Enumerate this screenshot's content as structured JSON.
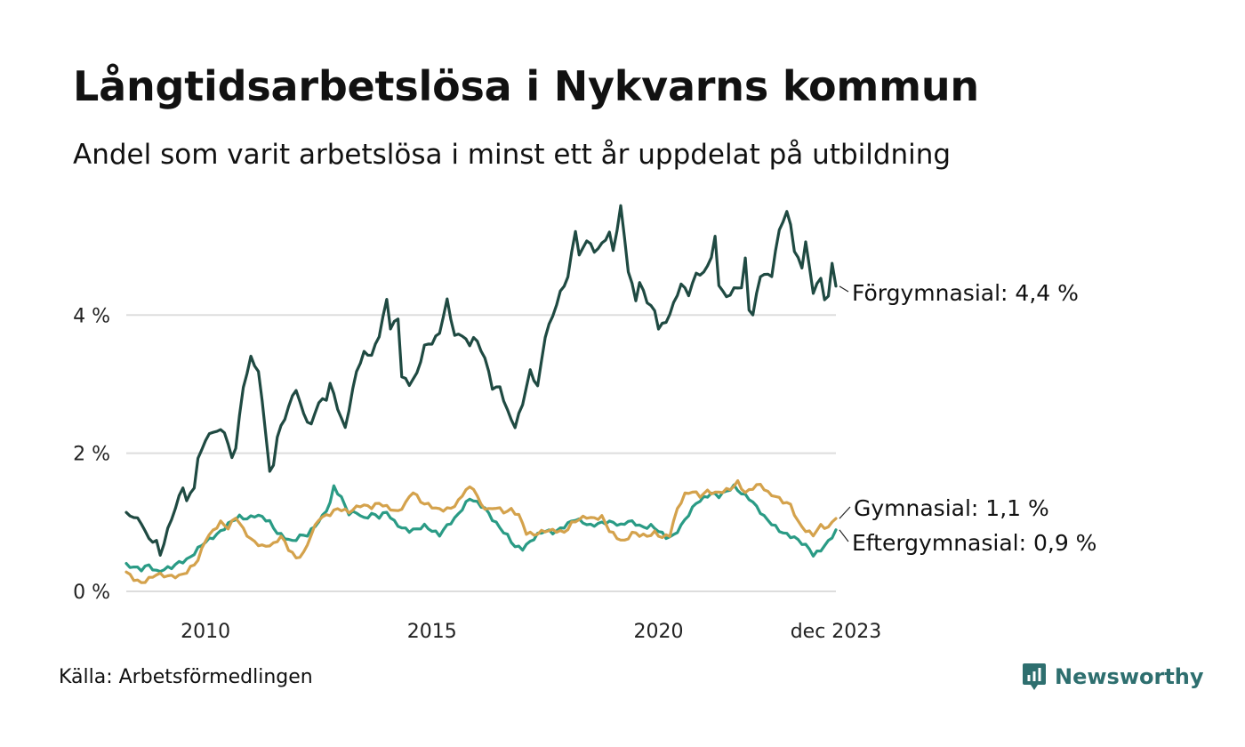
{
  "title": "Långtidsarbetslösa i Nykvarns kommun",
  "subtitle": "Andel som varit arbetslösa i minst ett år uppdelat på utbildning",
  "source": "Källa: Arbetsförmedlingen",
  "brand": {
    "name": "Newsworthy",
    "icon": "newsworthy-logo-icon",
    "color": "#2e6f6f"
  },
  "chart_data": {
    "type": "line",
    "title": "Långtidsarbetslösa i Nykvarns kommun",
    "xlabel": "",
    "ylabel": "",
    "x_start": 2008.25,
    "x_step": 0.08333,
    "xlim": [
      2008.25,
      2023.917
    ],
    "ylim": [
      0,
      5.6
    ],
    "grid": true,
    "y_ticks": [
      0,
      2,
      4
    ],
    "y_tick_labels": [
      "0 %",
      "2 %",
      "4 %"
    ],
    "x_ticks": [
      2010,
      2015,
      2020,
      2023.917
    ],
    "x_tick_labels": [
      "2010",
      "2015",
      "2020",
      "dec 2023"
    ],
    "series": [
      {
        "name": "Förgymnasial",
        "label": "Förgymnasial: 4,4 %",
        "color": "#1f4a42",
        "anchors": [
          [
            2008.25,
            1.12
          ],
          [
            2008.42,
            1.08
          ],
          [
            2008.58,
            1.0
          ],
          [
            2008.75,
            0.75
          ],
          [
            2008.92,
            0.72
          ],
          [
            2009.0,
            0.52
          ],
          [
            2009.17,
            0.9
          ],
          [
            2009.33,
            1.2
          ],
          [
            2009.5,
            1.52
          ],
          [
            2009.58,
            1.3
          ],
          [
            2009.75,
            1.52
          ],
          [
            2009.83,
            1.9
          ],
          [
            2010.0,
            2.2
          ],
          [
            2010.17,
            2.32
          ],
          [
            2010.42,
            2.32
          ],
          [
            2010.58,
            1.92
          ],
          [
            2010.67,
            2.1
          ],
          [
            2010.83,
            2.95
          ],
          [
            2011.0,
            3.38
          ],
          [
            2011.17,
            3.18
          ],
          [
            2011.33,
            2.3
          ],
          [
            2011.42,
            1.7
          ],
          [
            2011.5,
            1.82
          ],
          [
            2011.58,
            2.25
          ],
          [
            2011.75,
            2.5
          ],
          [
            2011.83,
            2.68
          ],
          [
            2012.0,
            2.93
          ],
          [
            2012.17,
            2.55
          ],
          [
            2012.33,
            2.4
          ],
          [
            2012.5,
            2.75
          ],
          [
            2012.67,
            2.78
          ],
          [
            2012.75,
            3.02
          ],
          [
            2012.92,
            2.65
          ],
          [
            2013.08,
            2.35
          ],
          [
            2013.17,
            2.65
          ],
          [
            2013.33,
            3.18
          ],
          [
            2013.5,
            3.45
          ],
          [
            2013.67,
            3.42
          ],
          [
            2013.83,
            3.7
          ],
          [
            2014.0,
            4.22
          ],
          [
            2014.08,
            3.82
          ],
          [
            2014.25,
            3.95
          ],
          [
            2014.33,
            3.12
          ],
          [
            2014.5,
            3.0
          ],
          [
            2014.67,
            3.15
          ],
          [
            2014.83,
            3.55
          ],
          [
            2015.0,
            3.6
          ],
          [
            2015.17,
            3.75
          ],
          [
            2015.33,
            4.22
          ],
          [
            2015.5,
            3.7
          ],
          [
            2015.67,
            3.72
          ],
          [
            2015.83,
            3.55
          ],
          [
            2015.92,
            3.7
          ],
          [
            2016.17,
            3.38
          ],
          [
            2016.33,
            2.95
          ],
          [
            2016.5,
            2.95
          ],
          [
            2016.67,
            2.6
          ],
          [
            2016.83,
            2.38
          ],
          [
            2017.0,
            2.72
          ],
          [
            2017.17,
            3.2
          ],
          [
            2017.33,
            2.95
          ],
          [
            2017.5,
            3.7
          ],
          [
            2017.67,
            4.0
          ],
          [
            2017.83,
            4.32
          ],
          [
            2018.0,
            4.55
          ],
          [
            2018.17,
            5.25
          ],
          [
            2018.25,
            4.85
          ],
          [
            2018.42,
            5.1
          ],
          [
            2018.58,
            4.92
          ],
          [
            2018.75,
            5.02
          ],
          [
            2018.92,
            5.2
          ],
          [
            2019.0,
            4.92
          ],
          [
            2019.17,
            5.58
          ],
          [
            2019.33,
            4.65
          ],
          [
            2019.5,
            4.22
          ],
          [
            2019.58,
            4.48
          ],
          [
            2019.75,
            4.2
          ],
          [
            2019.92,
            4.05
          ],
          [
            2020.0,
            3.82
          ],
          [
            2020.17,
            3.9
          ],
          [
            2020.33,
            4.15
          ],
          [
            2020.5,
            4.45
          ],
          [
            2020.67,
            4.3
          ],
          [
            2020.83,
            4.6
          ],
          [
            2021.0,
            4.6
          ],
          [
            2021.17,
            4.85
          ],
          [
            2021.25,
            5.12
          ],
          [
            2021.33,
            4.45
          ],
          [
            2021.5,
            4.25
          ],
          [
            2021.67,
            4.38
          ],
          [
            2021.83,
            4.4
          ],
          [
            2021.92,
            4.82
          ],
          [
            2022.0,
            4.08
          ],
          [
            2022.08,
            4.0
          ],
          [
            2022.25,
            4.58
          ],
          [
            2022.5,
            4.58
          ],
          [
            2022.67,
            5.25
          ],
          [
            2022.83,
            5.48
          ],
          [
            2022.92,
            5.32
          ],
          [
            2023.0,
            4.92
          ],
          [
            2023.17,
            4.7
          ],
          [
            2023.25,
            5.05
          ],
          [
            2023.42,
            4.32
          ],
          [
            2023.58,
            4.55
          ],
          [
            2023.67,
            4.22
          ],
          [
            2023.75,
            4.25
          ],
          [
            2023.83,
            4.78
          ],
          [
            2023.92,
            4.4
          ]
        ]
      },
      {
        "name": "Gymnasial",
        "label": "Gymnasial: 1,1 %",
        "color": "#d4a24c",
        "anchors": [
          [
            2008.25,
            0.28
          ],
          [
            2008.42,
            0.18
          ],
          [
            2008.58,
            0.12
          ],
          [
            2008.75,
            0.18
          ],
          [
            2008.92,
            0.25
          ],
          [
            2009.17,
            0.22
          ],
          [
            2009.42,
            0.22
          ],
          [
            2009.58,
            0.28
          ],
          [
            2009.83,
            0.45
          ],
          [
            2010.0,
            0.75
          ],
          [
            2010.17,
            0.88
          ],
          [
            2010.33,
            1.0
          ],
          [
            2010.5,
            0.92
          ],
          [
            2010.67,
            1.08
          ],
          [
            2010.83,
            0.9
          ],
          [
            2011.0,
            0.75
          ],
          [
            2011.25,
            0.65
          ],
          [
            2011.5,
            0.68
          ],
          [
            2011.67,
            0.8
          ],
          [
            2011.83,
            0.62
          ],
          [
            2012.0,
            0.48
          ],
          [
            2012.17,
            0.55
          ],
          [
            2012.33,
            0.82
          ],
          [
            2012.5,
            1.05
          ],
          [
            2012.75,
            1.12
          ],
          [
            2012.92,
            1.2
          ],
          [
            2013.17,
            1.15
          ],
          [
            2013.42,
            1.25
          ],
          [
            2013.67,
            1.22
          ],
          [
            2013.83,
            1.28
          ],
          [
            2014.0,
            1.22
          ],
          [
            2014.25,
            1.15
          ],
          [
            2014.42,
            1.28
          ],
          [
            2014.58,
            1.45
          ],
          [
            2014.75,
            1.3
          ],
          [
            2014.92,
            1.25
          ],
          [
            2015.17,
            1.18
          ],
          [
            2015.42,
            1.2
          ],
          [
            2015.58,
            1.3
          ],
          [
            2015.75,
            1.48
          ],
          [
            2015.92,
            1.5
          ],
          [
            2016.08,
            1.25
          ],
          [
            2016.25,
            1.18
          ],
          [
            2016.42,
            1.22
          ],
          [
            2016.58,
            1.15
          ],
          [
            2016.75,
            1.18
          ],
          [
            2016.92,
            1.1
          ],
          [
            2017.08,
            0.85
          ],
          [
            2017.25,
            0.82
          ],
          [
            2017.5,
            0.88
          ],
          [
            2017.75,
            0.88
          ],
          [
            2017.92,
            0.85
          ],
          [
            2018.08,
            0.98
          ],
          [
            2018.25,
            1.05
          ],
          [
            2018.42,
            1.08
          ],
          [
            2018.58,
            1.05
          ],
          [
            2018.75,
            1.08
          ],
          [
            2018.92,
            0.88
          ],
          [
            2019.08,
            0.78
          ],
          [
            2019.25,
            0.72
          ],
          [
            2019.42,
            0.85
          ],
          [
            2019.58,
            0.82
          ],
          [
            2019.75,
            0.8
          ],
          [
            2019.92,
            0.85
          ],
          [
            2020.08,
            0.78
          ],
          [
            2020.25,
            0.82
          ],
          [
            2020.42,
            1.2
          ],
          [
            2020.58,
            1.4
          ],
          [
            2020.75,
            1.45
          ],
          [
            2020.92,
            1.38
          ],
          [
            2021.08,
            1.45
          ],
          [
            2021.25,
            1.42
          ],
          [
            2021.42,
            1.45
          ],
          [
            2021.58,
            1.48
          ],
          [
            2021.75,
            1.58
          ],
          [
            2021.92,
            1.42
          ],
          [
            2022.08,
            1.5
          ],
          [
            2022.25,
            1.55
          ],
          [
            2022.42,
            1.42
          ],
          [
            2022.58,
            1.38
          ],
          [
            2022.75,
            1.3
          ],
          [
            2022.92,
            1.25
          ],
          [
            2023.08,
            1.0
          ],
          [
            2023.25,
            0.88
          ],
          [
            2023.42,
            0.82
          ],
          [
            2023.58,
            0.95
          ],
          [
            2023.75,
            0.92
          ],
          [
            2023.92,
            1.08
          ]
        ]
      },
      {
        "name": "Eftergymnasial",
        "label": "Eftergymnasial: 0,9 %",
        "color": "#2a9b85",
        "anchors": [
          [
            2008.25,
            0.38
          ],
          [
            2008.42,
            0.35
          ],
          [
            2008.58,
            0.32
          ],
          [
            2008.75,
            0.38
          ],
          [
            2008.92,
            0.28
          ],
          [
            2009.08,
            0.32
          ],
          [
            2009.25,
            0.35
          ],
          [
            2009.42,
            0.42
          ],
          [
            2009.58,
            0.45
          ],
          [
            2009.75,
            0.55
          ],
          [
            2009.92,
            0.68
          ],
          [
            2010.08,
            0.75
          ],
          [
            2010.25,
            0.82
          ],
          [
            2010.42,
            0.92
          ],
          [
            2010.58,
            1.02
          ],
          [
            2010.75,
            1.08
          ],
          [
            2010.92,
            1.05
          ],
          [
            2011.08,
            1.1
          ],
          [
            2011.25,
            1.08
          ],
          [
            2011.42,
            1.0
          ],
          [
            2011.58,
            0.85
          ],
          [
            2011.75,
            0.78
          ],
          [
            2011.92,
            0.72
          ],
          [
            2012.08,
            0.8
          ],
          [
            2012.25,
            0.82
          ],
          [
            2012.42,
            0.95
          ],
          [
            2012.58,
            1.08
          ],
          [
            2012.75,
            1.28
          ],
          [
            2012.83,
            1.52
          ],
          [
            2013.0,
            1.35
          ],
          [
            2013.17,
            1.12
          ],
          [
            2013.33,
            1.15
          ],
          [
            2013.5,
            1.05
          ],
          [
            2013.67,
            1.12
          ],
          [
            2013.83,
            1.08
          ],
          [
            2014.0,
            1.15
          ],
          [
            2014.17,
            1.0
          ],
          [
            2014.33,
            0.92
          ],
          [
            2014.5,
            0.88
          ],
          [
            2014.67,
            0.9
          ],
          [
            2014.83,
            0.95
          ],
          [
            2015.0,
            0.88
          ],
          [
            2015.17,
            0.82
          ],
          [
            2015.33,
            0.95
          ],
          [
            2015.5,
            1.05
          ],
          [
            2015.67,
            1.2
          ],
          [
            2015.83,
            1.35
          ],
          [
            2016.0,
            1.28
          ],
          [
            2016.17,
            1.2
          ],
          [
            2016.33,
            1.05
          ],
          [
            2016.5,
            0.92
          ],
          [
            2016.67,
            0.8
          ],
          [
            2016.83,
            0.65
          ],
          [
            2017.0,
            0.62
          ],
          [
            2017.17,
            0.72
          ],
          [
            2017.33,
            0.82
          ],
          [
            2017.5,
            0.88
          ],
          [
            2017.67,
            0.85
          ],
          [
            2017.83,
            0.9
          ],
          [
            2018.0,
            0.98
          ],
          [
            2018.17,
            1.05
          ],
          [
            2018.33,
            1.0
          ],
          [
            2018.5,
            0.95
          ],
          [
            2018.67,
            0.98
          ],
          [
            2018.83,
            1.0
          ],
          [
            2019.0,
            1.0
          ],
          [
            2019.17,
            0.95
          ],
          [
            2019.33,
            1.02
          ],
          [
            2019.5,
            0.98
          ],
          [
            2019.67,
            0.92
          ],
          [
            2019.83,
            0.95
          ],
          [
            2020.0,
            0.88
          ],
          [
            2020.17,
            0.78
          ],
          [
            2020.33,
            0.8
          ],
          [
            2020.5,
            0.95
          ],
          [
            2020.67,
            1.12
          ],
          [
            2020.83,
            1.28
          ],
          [
            2021.0,
            1.35
          ],
          [
            2021.17,
            1.42
          ],
          [
            2021.33,
            1.38
          ],
          [
            2021.5,
            1.45
          ],
          [
            2021.67,
            1.52
          ],
          [
            2021.83,
            1.42
          ],
          [
            2022.0,
            1.35
          ],
          [
            2022.17,
            1.22
          ],
          [
            2022.33,
            1.08
          ],
          [
            2022.5,
            0.98
          ],
          [
            2022.67,
            0.88
          ],
          [
            2022.83,
            0.82
          ],
          [
            2023.0,
            0.78
          ],
          [
            2023.17,
            0.7
          ],
          [
            2023.33,
            0.62
          ],
          [
            2023.42,
            0.52
          ],
          [
            2023.58,
            0.6
          ],
          [
            2023.75,
            0.72
          ],
          [
            2023.92,
            0.88
          ]
        ]
      }
    ]
  }
}
